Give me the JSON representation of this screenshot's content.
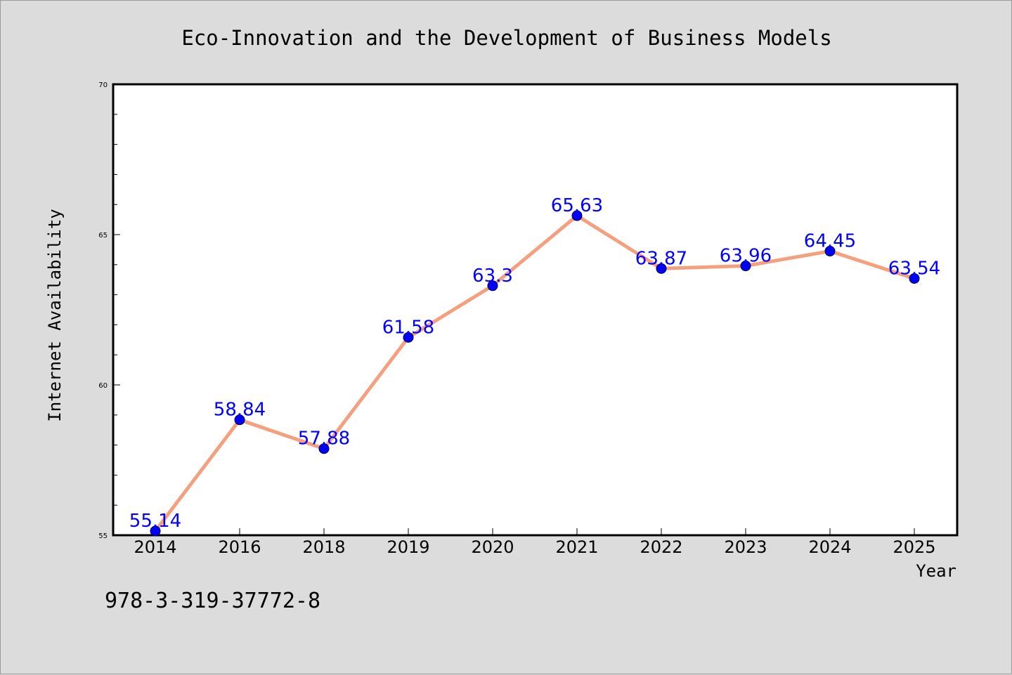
{
  "chart_data": {
    "type": "line",
    "title": "Eco-Innovation and the Development of Business Models",
    "xlabel": "Year",
    "ylabel": "Internet Availability",
    "categories": [
      "2014",
      "2016",
      "2018",
      "2019",
      "2020",
      "2021",
      "2022",
      "2023",
      "2024",
      "2025"
    ],
    "series": [
      {
        "values": [
          55.14,
          58.84,
          57.88,
          61.58,
          63.3,
          65.63,
          63.87,
          63.96,
          64.45,
          63.54
        ],
        "labels": [
          "55.14",
          "58.84",
          "57.88",
          "61.58",
          "63.3",
          "65.63",
          "63.87",
          "63.96",
          "64.45",
          "63.54"
        ]
      }
    ],
    "ylim": [
      55,
      70
    ],
    "yticks": [
      "55",
      "60",
      "65",
      "70"
    ],
    "grid": false,
    "colors": {
      "line": "#f4a07e",
      "marker": "#0000ff",
      "label": "#0000ff"
    }
  },
  "footer": "978-3-319-37772-8"
}
